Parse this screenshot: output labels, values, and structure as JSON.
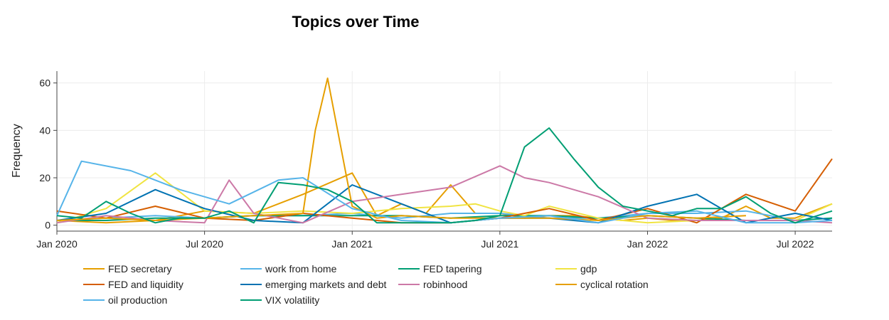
{
  "chart_data": {
    "type": "line",
    "title": "Topics over Time",
    "xlabel": "",
    "ylabel": "Frequency",
    "x_ticks": [
      {
        "label": "Jan 2020",
        "month": 0
      },
      {
        "label": "Jul 2020",
        "month": 6
      },
      {
        "label": "Jan 2021",
        "month": 12
      },
      {
        "label": "Jul 2021",
        "month": 18
      },
      {
        "label": "Jan 2022",
        "month": 24
      },
      {
        "label": "Jul 2022",
        "month": 30
      }
    ],
    "xlim_months": [
      0,
      31.5
    ],
    "y_ticks": [
      0,
      20,
      40,
      60
    ],
    "ylim": [
      -2.5,
      65
    ],
    "grid": true,
    "legend_position": "bottom",
    "series": [
      {
        "name": "FED secretary",
        "color": "#E69F00",
        "x": [
          0,
          2,
          4,
          6,
          8,
          10,
          12,
          13,
          14,
          15,
          16,
          17,
          18,
          19,
          20,
          21,
          22,
          23,
          24,
          25,
          26,
          27,
          28,
          29,
          30,
          31.5
        ],
        "y": [
          2,
          1,
          2,
          6,
          5,
          13,
          22,
          4,
          9,
          5,
          17,
          5,
          5,
          3,
          4,
          4,
          3,
          2,
          3,
          2,
          2,
          3,
          8,
          3,
          3,
          9
        ]
      },
      {
        "name": "work from home",
        "color": "#56B4E9",
        "x": [
          0,
          2,
          4,
          6,
          8,
          10,
          12,
          14,
          16,
          18,
          20,
          22,
          24,
          26,
          28,
          30,
          31.5
        ],
        "y": [
          2,
          3,
          4,
          3,
          4,
          4,
          5,
          3,
          5,
          5,
          3,
          3,
          5,
          5,
          6,
          2,
          3
        ]
      },
      {
        "name": "FED tapering",
        "color": "#009E73",
        "x": [
          0,
          2,
          4,
          6,
          8,
          10,
          12,
          14,
          16,
          18,
          20,
          22,
          24,
          26,
          28,
          30,
          31.5
        ],
        "y": [
          2,
          2,
          3,
          3,
          4,
          4,
          4,
          4,
          3,
          4,
          4,
          3,
          4,
          3,
          2,
          2,
          3
        ]
      },
      {
        "name": "gdp",
        "color": "#F0E442",
        "x": [
          0,
          2,
          4,
          6,
          8,
          10,
          12,
          14,
          16,
          17,
          18,
          19,
          20,
          22,
          24,
          26,
          28,
          30,
          31.5
        ],
        "y": [
          1,
          7,
          22,
          6,
          5,
          6,
          5,
          7,
          8,
          9,
          6,
          4,
          8,
          3,
          1,
          2,
          2,
          2,
          9
        ]
      },
      {
        "name": "FED and liquidity",
        "color": "#D55E00",
        "x": [
          0,
          2,
          4,
          6,
          8,
          10,
          12,
          14,
          16,
          18,
          20,
          22,
          24,
          26,
          28,
          30,
          31.5
        ],
        "y": [
          6,
          3,
          8,
          3,
          2,
          5,
          3,
          1,
          1,
          3,
          7,
          2,
          7,
          1,
          13,
          6,
          28
        ]
      },
      {
        "name": "emerging markets and debt",
        "color": "#0072B2",
        "x": [
          0,
          2,
          4,
          6,
          8,
          10,
          12,
          14,
          16,
          18,
          20,
          22,
          24,
          26,
          28,
          30,
          31.5
        ],
        "y": [
          2,
          5,
          15,
          7,
          2,
          1,
          17,
          9,
          1,
          3,
          3,
          1,
          8,
          13,
          1,
          5,
          2
        ]
      },
      {
        "name": "robinhood",
        "color": "#CC79A7",
        "x": [
          0,
          2,
          4,
          6,
          7,
          8,
          10,
          12,
          14,
          16,
          18,
          19,
          20,
          22,
          24,
          26,
          28,
          30,
          31.5
        ],
        "y": [
          1,
          4,
          2,
          1,
          19,
          5,
          1,
          10,
          13,
          16,
          25,
          20,
          18,
          12,
          3,
          2,
          2,
          2,
          1
        ]
      },
      {
        "name": "cyclical rotation",
        "color": "#E69F00",
        "x": [
          0,
          2,
          4,
          6,
          8,
          10,
          10.5,
          11,
          12,
          13,
          14,
          16,
          18,
          20,
          22,
          24,
          26,
          28
        ],
        "y": [
          2,
          3,
          2,
          3,
          4,
          5,
          40,
          62,
          8,
          3,
          4,
          3,
          3,
          3,
          2,
          4,
          3,
          4
        ]
      },
      {
        "name": "oil production",
        "color": "#56B4E9",
        "x": [
          0,
          1,
          3,
          5,
          7,
          9,
          10,
          12,
          14,
          16,
          18,
          20,
          22,
          24,
          26,
          28,
          30,
          31.5
        ],
        "y": [
          4,
          27,
          23,
          15,
          9,
          19,
          20,
          7,
          2,
          1,
          3,
          4,
          1,
          5,
          6,
          1,
          1,
          2
        ]
      },
      {
        "name": "VIX volatility",
        "color": "#009E73",
        "x": [
          0,
          1,
          2,
          3,
          4,
          5,
          6,
          7,
          8,
          9,
          10,
          11,
          12,
          13,
          14,
          15,
          16,
          17,
          18,
          19,
          20,
          21,
          22,
          23,
          24,
          25,
          26,
          27,
          28,
          29,
          30,
          31.5
        ],
        "y": [
          4,
          3,
          10,
          5,
          1,
          3,
          3,
          6,
          1,
          18,
          17,
          15,
          10,
          1,
          1,
          1,
          1,
          2,
          4,
          33,
          41,
          28,
          16,
          8,
          6,
          4,
          7,
          7,
          12,
          5,
          1,
          6
        ]
      }
    ]
  }
}
